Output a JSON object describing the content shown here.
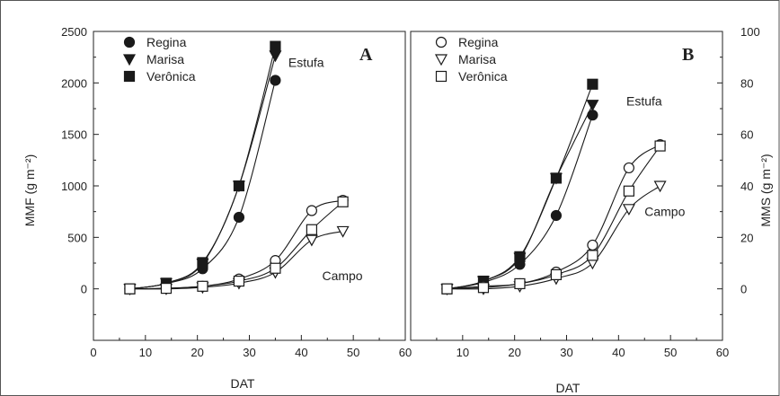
{
  "chart_data": [
    {
      "type": "scatter",
      "panel_label": "A",
      "xlabel": "DAT",
      "ylabel": "MMF (g m⁻²)",
      "xlim": [
        0,
        60
      ],
      "ylim": [
        -500,
        2500
      ],
      "xticks": [
        0,
        10,
        20,
        30,
        40,
        50,
        60
      ],
      "yticks": [
        0,
        500,
        1000,
        1500,
        2000,
        2500
      ],
      "grid": false,
      "legend_position": "top-left",
      "marker_style": "filled",
      "annotations": [
        {
          "text": "Estufa",
          "x": 37.5,
          "y": 2200
        },
        {
          "text": "Campo",
          "x": 44,
          "y": 130
        }
      ],
      "series": [
        {
          "name": "Regina",
          "marker": "circle",
          "group": "Estufa",
          "x": [
            7,
            14,
            21,
            28,
            35
          ],
          "y": [
            0,
            50,
            195,
            695,
            2025
          ]
        },
        {
          "name": "Marisa",
          "marker": "triangle-down",
          "group": "Estufa",
          "x": [
            7,
            14,
            21,
            28,
            35
          ],
          "y": [
            0,
            55,
            245,
            1000,
            2265
          ]
        },
        {
          "name": "Verônica",
          "marker": "square",
          "group": "Estufa",
          "x": [
            7,
            14,
            21,
            28,
            35
          ],
          "y": [
            0,
            55,
            255,
            1000,
            2355
          ]
        },
        {
          "name": "Regina",
          "marker": "circle-open",
          "group": "Campo",
          "x": [
            7,
            14,
            21,
            28,
            35,
            42,
            48
          ],
          "y": [
            0,
            5,
            25,
            95,
            275,
            760,
            860
          ]
        },
        {
          "name": "Marisa",
          "marker": "triangle-down-open",
          "group": "Campo",
          "x": [
            7,
            14,
            21,
            28,
            35,
            42,
            48
          ],
          "y": [
            0,
            0,
            15,
            55,
            160,
            475,
            560
          ]
        },
        {
          "name": "Verônica",
          "marker": "square-open",
          "group": "Campo",
          "x": [
            7,
            14,
            21,
            28,
            35,
            42,
            48
          ],
          "y": [
            0,
            5,
            25,
            75,
            200,
            575,
            845
          ]
        }
      ]
    },
    {
      "type": "scatter",
      "panel_label": "B",
      "xlabel": "DAT",
      "ylabel": "MMS (g m⁻²)",
      "xlim": [
        0,
        60
      ],
      "ylim": [
        -20,
        100
      ],
      "xticks": [
        10,
        20,
        30,
        40,
        50,
        60
      ],
      "yticks": [
        0,
        20,
        40,
        60,
        80,
        100
      ],
      "grid": false,
      "legend_position": "top-left",
      "marker_style": "open",
      "annotations": [
        {
          "text": "Estufa",
          "x": 41.5,
          "y": 73
        },
        {
          "text": "Campo",
          "x": 45,
          "y": 30
        }
      ],
      "series": [
        {
          "name": "Regina",
          "marker": "circle",
          "group": "Estufa",
          "x": [
            7,
            14,
            21,
            28,
            35
          ],
          "y": [
            0,
            2.5,
            9.5,
            28.5,
            67.5
          ]
        },
        {
          "name": "Marisa",
          "marker": "triangle-down",
          "group": "Estufa",
          "x": [
            7,
            14,
            21,
            28,
            35
          ],
          "y": [
            0,
            3,
            12,
            43,
            71.5
          ]
        },
        {
          "name": "Verônica",
          "marker": "square",
          "group": "Estufa",
          "x": [
            7,
            14,
            21,
            28,
            35
          ],
          "y": [
            0,
            3,
            12.5,
            43,
            79.5
          ]
        },
        {
          "name": "Regina",
          "marker": "circle-open",
          "group": "Campo",
          "x": [
            7,
            14,
            21,
            28,
            35,
            42,
            48
          ],
          "y": [
            0,
            1,
            2,
            6.5,
            17,
            47,
            56
          ]
        },
        {
          "name": "Marisa",
          "marker": "triangle-down-open",
          "group": "Campo",
          "x": [
            7,
            14,
            21,
            28,
            35,
            42,
            48
          ],
          "y": [
            0,
            0,
            1,
            4,
            10,
            31,
            40
          ]
        },
        {
          "name": "Verônica",
          "marker": "square-open",
          "group": "Campo",
          "x": [
            7,
            14,
            21,
            28,
            35,
            42,
            48
          ],
          "y": [
            0,
            0.5,
            2,
            5.5,
            13,
            38,
            55.5
          ]
        }
      ]
    }
  ]
}
